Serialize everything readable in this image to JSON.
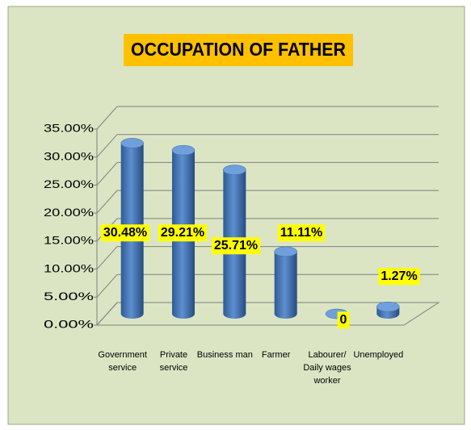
{
  "chart_data": {
    "type": "bar3d",
    "title": "OCCUPATION OF FATHER",
    "categories": [
      "Government service",
      "Private service",
      "Business man",
      "Farmer",
      "Labourer/ Daily wages worker",
      "Unemployed"
    ],
    "values": [
      30.48,
      29.21,
      25.71,
      11.11,
      0,
      1.27
    ],
    "value_labels": [
      "30.48%",
      "29.21%",
      "25.71%",
      "11.11%",
      "0",
      "1.27%"
    ],
    "color": "#4a7ebb",
    "ylim": [
      0,
      35
    ],
    "yticks": [
      {
        "value": 0,
        "label": "0.00%"
      },
      {
        "value": 5,
        "label": "5.00%"
      },
      {
        "value": 10,
        "label": "10.00%"
      },
      {
        "value": 15,
        "label": "15.00%"
      },
      {
        "value": 20,
        "label": "20.00%"
      },
      {
        "value": 25,
        "label": "25.00%"
      },
      {
        "value": 30,
        "label": "30.00%"
      },
      {
        "value": 35,
        "label": "35.00%"
      }
    ],
    "grid": true
  }
}
